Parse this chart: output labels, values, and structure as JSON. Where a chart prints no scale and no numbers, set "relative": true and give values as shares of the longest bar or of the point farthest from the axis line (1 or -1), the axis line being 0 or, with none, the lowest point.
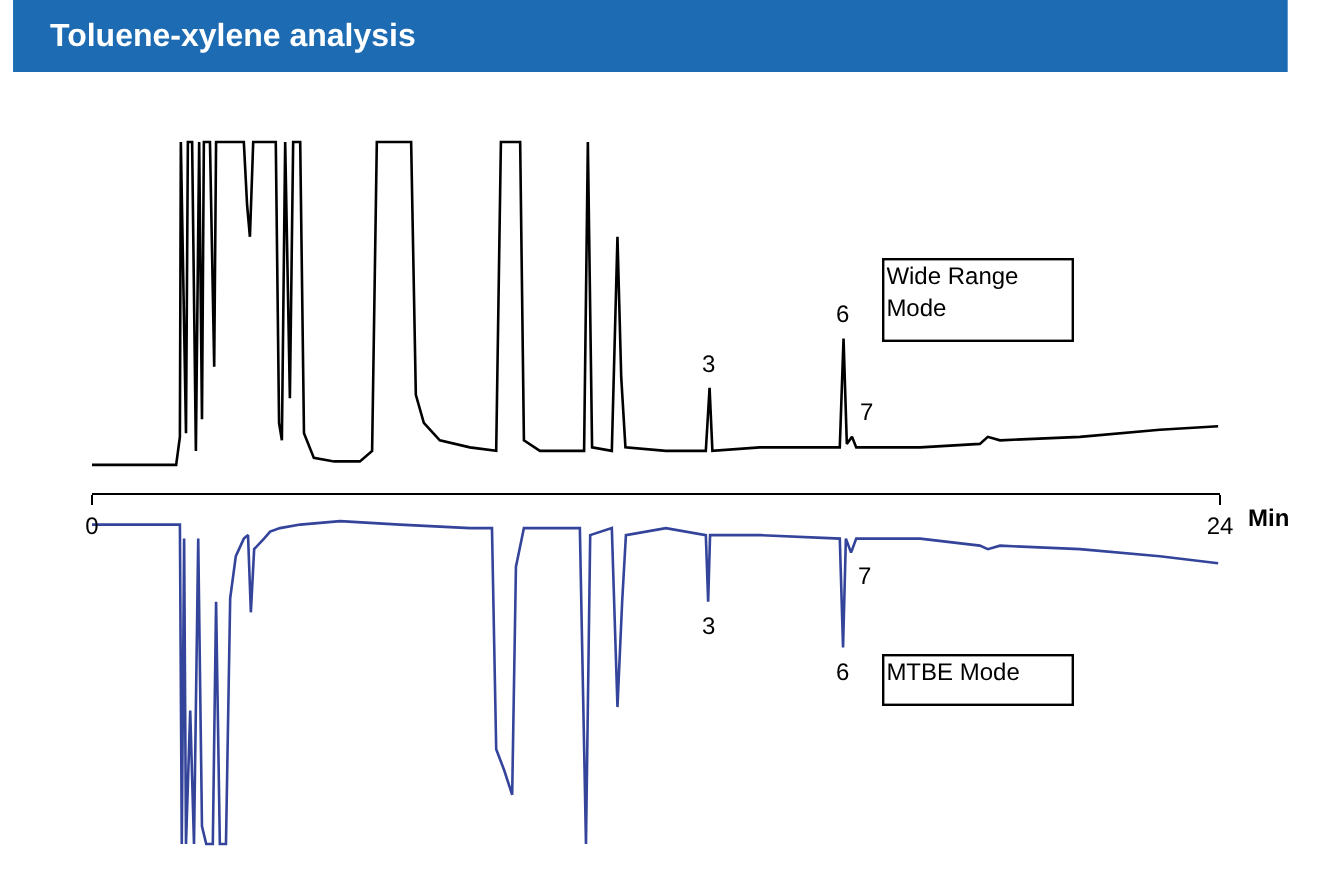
{
  "chart_data": {
    "type": "line",
    "title": "Toluene-xylene analysis",
    "xlabel": "Min",
    "relative": true,
    "xlim": [
      0,
      24
    ],
    "xticks": [
      0,
      24
    ],
    "legend": false,
    "series": [
      {
        "name": "Wide Range Mode",
        "color": "#000000",
        "x": [
          0,
          1.79,
          1.87,
          1.89,
          2.0,
          2.04,
          2.13,
          2.21,
          2.28,
          2.34,
          2.38,
          2.51,
          2.6,
          2.64,
          3.23,
          3.3,
          3.36,
          3.43,
          3.91,
          3.98,
          4.04,
          4.11,
          4.21,
          4.28,
          4.43,
          4.51,
          4.72,
          5.15,
          5.7,
          5.96,
          6.06,
          6.79,
          6.89,
          7.06,
          7.4,
          8.04,
          8.6,
          8.7,
          9.11,
          9.19,
          9.53,
          10.47,
          10.55,
          10.64,
          11.06,
          11.18,
          11.26,
          11.35,
          12.21,
          13.06,
          13.14,
          13.2,
          14.21,
          15.91,
          15.99,
          16.06,
          16.17,
          16.26,
          17.62,
          18.89,
          19.06,
          19.32,
          21.02,
          22.72,
          23.96
        ],
        "values": [
          0.08,
          0.08,
          0.16,
          1.0,
          0.17,
          1.0,
          1.0,
          0.12,
          1.0,
          0.21,
          1.0,
          1.0,
          0.36,
          1.0,
          1.0,
          0.82,
          0.73,
          1.0,
          1.0,
          0.2,
          0.15,
          1.0,
          0.27,
          1.0,
          1.0,
          0.17,
          0.1,
          0.09,
          0.09,
          0.12,
          1.0,
          1.0,
          0.28,
          0.2,
          0.15,
          0.13,
          0.12,
          1.0,
          1.0,
          0.15,
          0.12,
          0.12,
          1.0,
          0.13,
          0.12,
          0.73,
          0.33,
          0.13,
          0.12,
          0.12,
          0.3,
          0.12,
          0.13,
          0.13,
          0.44,
          0.14,
          0.16,
          0.13,
          0.13,
          0.14,
          0.16,
          0.15,
          0.16,
          0.18,
          0.19
        ]
      },
      {
        "name": "MTBE Mode",
        "color": "#33449a",
        "x": [
          0,
          1.87,
          1.91,
          1.96,
          2.0,
          2.09,
          2.17,
          2.26,
          2.34,
          2.43,
          2.57,
          2.64,
          2.72,
          2.85,
          2.94,
          3.06,
          3.23,
          3.32,
          3.38,
          3.45,
          3.66,
          3.79,
          4.0,
          4.43,
          5.28,
          6.55,
          8.04,
          8.51,
          8.6,
          8.77,
          8.94,
          9.02,
          9.19,
          10.38,
          10.51,
          10.6,
          11.06,
          11.18,
          11.28,
          11.36,
          12.21,
          13.06,
          13.11,
          13.15,
          14.21,
          15.91,
          15.98,
          16.04,
          16.15,
          16.26,
          17.62,
          18.89,
          19.06,
          19.32,
          21.02,
          22.72,
          23.96
        ],
        "values": [
          -0.09,
          -0.09,
          -1.0,
          -0.13,
          -1.0,
          -0.62,
          -1.0,
          -0.13,
          -0.95,
          -1.0,
          -1.0,
          -0.31,
          -1.0,
          -1.0,
          -0.3,
          -0.18,
          -0.13,
          -0.12,
          -0.34,
          -0.16,
          -0.13,
          -0.11,
          -0.1,
          -0.09,
          -0.08,
          -0.09,
          -0.1,
          -0.1,
          -0.73,
          -0.79,
          -0.86,
          -0.21,
          -0.1,
          -0.1,
          -1.0,
          -0.12,
          -0.1,
          -0.61,
          -0.31,
          -0.12,
          -0.1,
          -0.12,
          -0.31,
          -0.12,
          -0.12,
          -0.13,
          -0.44,
          -0.13,
          -0.17,
          -0.13,
          -0.13,
          -0.15,
          -0.16,
          -0.15,
          -0.16,
          -0.18,
          -0.2
        ]
      }
    ],
    "annotations": [
      {
        "text": "3",
        "x": 13.14,
        "y": 0.3
      },
      {
        "text": "6",
        "x": 15.99,
        "y": 0.44
      },
      {
        "text": "7",
        "x": 16.17,
        "y": 0.16
      },
      {
        "text": "3",
        "x": 13.11,
        "y": -0.31
      },
      {
        "text": "6",
        "x": 15.98,
        "y": -0.44
      },
      {
        "text": "7",
        "x": 16.15,
        "y": -0.17
      }
    ]
  }
}
